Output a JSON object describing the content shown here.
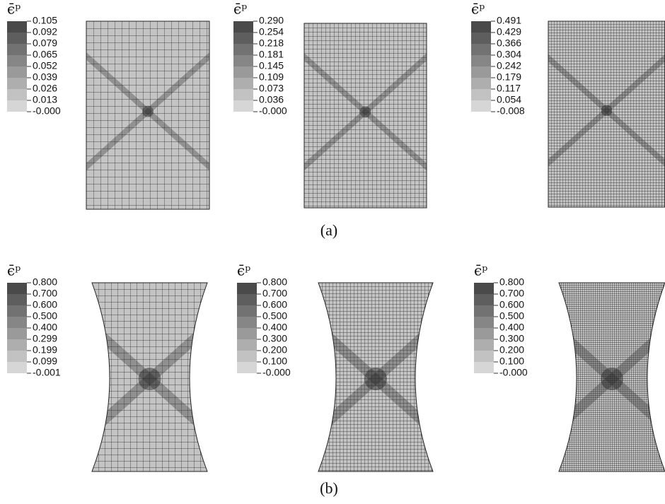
{
  "figure": {
    "rows": [
      {
        "caption": "(a)",
        "panels": [
          {
            "legend_title": "ϵ̄ᵖ",
            "legend_labels": [
              "0.105",
              "0.092",
              "0.079",
              "0.065",
              "0.052",
              "0.039",
              "0.026",
              "0.013",
              "-0.000"
            ]
          },
          {
            "legend_title": "ϵ̄ᵖ",
            "legend_labels": [
              "0.290",
              "0.254",
              "0.218",
              "0.181",
              "0.145",
              "0.109",
              "0.073",
              "0.036",
              "-0.000"
            ]
          },
          {
            "legend_title": "ϵ̄ᵖ",
            "legend_labels": [
              "0.491",
              "0.429",
              "0.366",
              "0.304",
              "0.242",
              "0.179",
              "0.117",
              "0.054",
              "-0.008"
            ]
          }
        ]
      },
      {
        "caption": "(b)",
        "panels": [
          {
            "legend_title": "ϵ̄ᵖ",
            "legend_labels": [
              "0.800",
              "0.700",
              "0.600",
              "0.500",
              "0.400",
              "0.299",
              "0.199",
              "0.099",
              "-0.001"
            ]
          },
          {
            "legend_title": "ϵ̄ᵖ",
            "legend_labels": [
              "0.800",
              "0.700",
              "0.600",
              "0.500",
              "0.400",
              "0.300",
              "0.200",
              "0.100",
              "-0.000"
            ]
          },
          {
            "legend_title": "ϵ̄ᵖ",
            "legend_labels": [
              "0.800",
              "0.700",
              "0.600",
              "0.500",
              "0.400",
              "0.300",
              "0.200",
              "0.100",
              "-0.000"
            ]
          }
        ]
      }
    ]
  }
}
